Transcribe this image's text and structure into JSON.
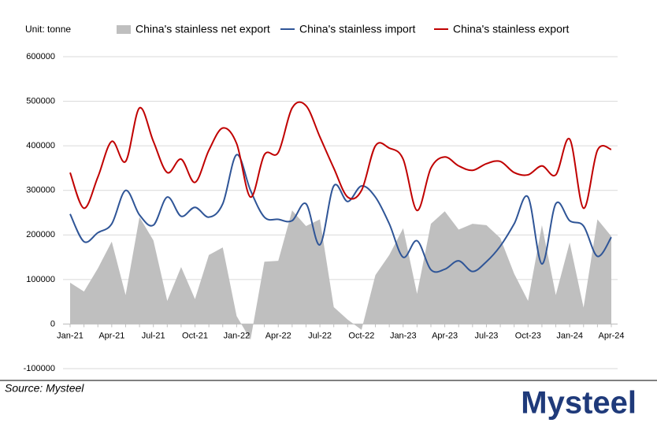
{
  "chart_data": {
    "type": "line",
    "unit_label": "Unit: tonne",
    "categories": [
      "Jan-21",
      null,
      null,
      "Apr-21",
      null,
      null,
      "Jul-21",
      null,
      null,
      "Oct-21",
      null,
      null,
      "Jan-22",
      null,
      null,
      "Apr-22",
      null,
      null,
      "Jul-22",
      null,
      null,
      "Oct-22",
      null,
      null,
      "Jan-23",
      null,
      null,
      "Apr-23",
      null,
      null,
      "Jul-23",
      null,
      null,
      "Oct-23",
      null,
      null,
      "Jan-24",
      null,
      null,
      "Apr-24"
    ],
    "series": [
      {
        "name": "China's stainless net export",
        "color": "#bfbfbf",
        "kind": "area",
        "values": [
          93000,
          73000,
          125000,
          185000,
          65000,
          240000,
          188000,
          52000,
          128000,
          56000,
          155000,
          172000,
          18000,
          -35000,
          140000,
          142000,
          255000,
          220000,
          235000,
          38000,
          10000,
          -13000,
          110000,
          155000,
          215000,
          68000,
          225000,
          253000,
          212000,
          225000,
          222000,
          193000,
          113000,
          52000,
          222000,
          65000,
          183000,
          37000,
          235000,
          197000
        ]
      },
      {
        "name": "China's stainless import",
        "color": "#2f5597",
        "kind": "line",
        "values": [
          247000,
          185000,
          205000,
          225000,
          300000,
          245000,
          222000,
          285000,
          242000,
          262000,
          240000,
          270000,
          380000,
          300000,
          240000,
          235000,
          232000,
          270000,
          178000,
          310000,
          275000,
          310000,
          285000,
          225000,
          150000,
          187000,
          122000,
          123000,
          142000,
          118000,
          140000,
          175000,
          225000,
          285000,
          135000,
          270000,
          232000,
          220000,
          152000,
          195000
        ]
      },
      {
        "name": "China's stainless export",
        "color": "#c00000",
        "kind": "line",
        "values": [
          340000,
          260000,
          330000,
          410000,
          365000,
          485000,
          410000,
          340000,
          370000,
          318000,
          390000,
          440000,
          405000,
          285000,
          380000,
          385000,
          485000,
          490000,
          420000,
          350000,
          285000,
          300000,
          400000,
          395000,
          370000,
          255000,
          350000,
          375000,
          355000,
          345000,
          360000,
          365000,
          340000,
          335000,
          355000,
          335000,
          415000,
          260000,
          390000,
          392000
        ]
      }
    ],
    "ylim": [
      -100000,
      600000
    ],
    "yticks": [
      -100000,
      0,
      100000,
      200000,
      300000,
      400000,
      500000,
      600000
    ],
    "grid": true,
    "source": "Source: Mysteel",
    "logo": "Mysteel"
  }
}
